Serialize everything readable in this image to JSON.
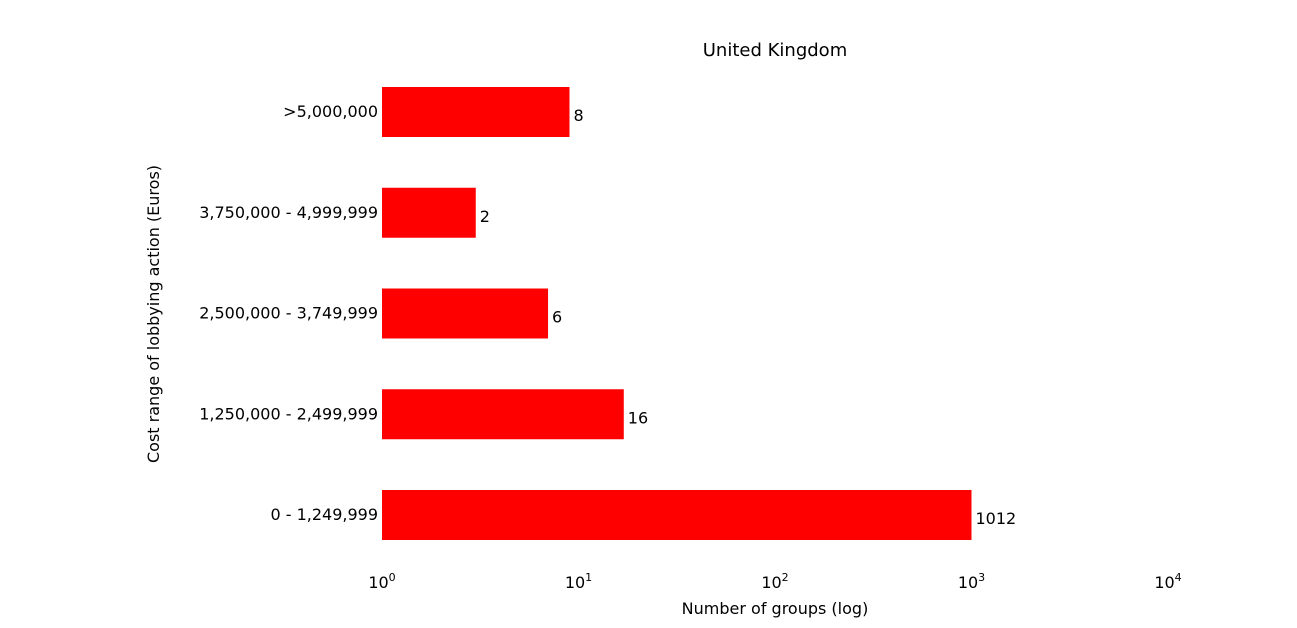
{
  "chart_data": {
    "type": "bar",
    "orientation": "horizontal",
    "title": "United Kingdom",
    "xlabel": "Number of groups (log)",
    "ylabel": "Cost range of lobbying action (Euros)",
    "x_scale": "log",
    "xlim": [
      1,
      10000
    ],
    "x_ticks": [
      {
        "value": 1,
        "base": "10",
        "exp": "0"
      },
      {
        "value": 10,
        "base": "10",
        "exp": "1"
      },
      {
        "value": 100,
        "base": "10",
        "exp": "2"
      },
      {
        "value": 1000,
        "base": "10",
        "exp": "3"
      },
      {
        "value": 10000,
        "base": "10",
        "exp": "4"
      }
    ],
    "categories": [
      "0 - 1,249,999",
      "1,250,000 - 2,499,999",
      "2,500,000 - 3,749,999",
      "3,750,000 - 4,999,999",
      ">5,000,000"
    ],
    "values": [
      1012,
      16,
      6,
      2,
      8
    ],
    "bar_extents": [
      1000,
      17,
      7,
      3,
      9
    ],
    "value_labels": [
      "1012",
      "16",
      "6",
      "2",
      "8"
    ],
    "bar_color": "#ff0000",
    "grid": false,
    "legend": "none"
  }
}
